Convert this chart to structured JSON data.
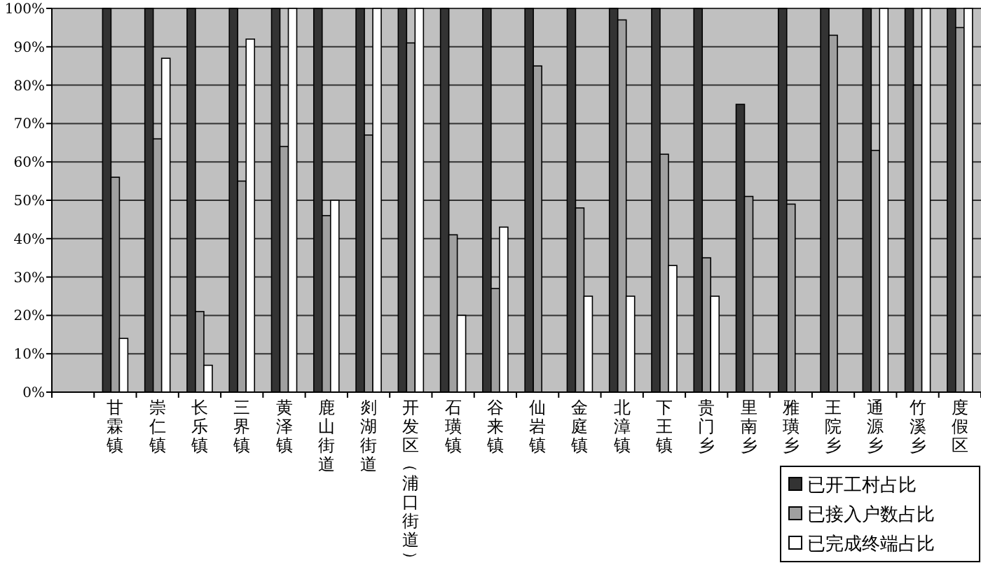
{
  "chart_data": {
    "type": "bar",
    "categories": [
      null,
      "甘霖镇",
      "崇仁镇",
      "长乐镇",
      "三界镇",
      "黄泽镇",
      "鹿山街道",
      "剡湖街道",
      "开发区（浦口街道）",
      "石璜镇",
      "谷来镇",
      "仙岩镇",
      "金庭镇",
      "北漳镇",
      "下王镇",
      "贵门乡",
      "里南乡",
      "雅璜乡",
      "王院乡",
      "通源乡",
      "竹溪乡",
      "度假区"
    ],
    "series": [
      {
        "name": "已开工村占比",
        "color": "#333333",
        "values": [
          null,
          100,
          100,
          100,
          100,
          100,
          100,
          100,
          100,
          100,
          100,
          100,
          100,
          100,
          100,
          100,
          75,
          100,
          100,
          100,
          100,
          100
        ]
      },
      {
        "name": "已接入户数占比",
        "color": "#a0a0a0",
        "values": [
          null,
          56,
          66,
          21,
          55,
          64,
          46,
          67,
          91,
          41,
          27,
          85,
          48,
          97,
          62,
          35,
          51,
          49,
          93,
          63,
          80,
          95
        ]
      },
      {
        "name": "已完成终端占比",
        "color": "#ffffff",
        "values": [
          null,
          14,
          87,
          7,
          92,
          100,
          50,
          100,
          100,
          20,
          43,
          null,
          25,
          25,
          33,
          25,
          null,
          null,
          null,
          100,
          100,
          100
        ]
      }
    ],
    "ylim": [
      0,
      100
    ],
    "yticks": [
      {
        "value": 0,
        "label": "0%"
      },
      {
        "value": 10,
        "label": "10%"
      },
      {
        "value": 20,
        "label": "20%"
      },
      {
        "value": 30,
        "label": "30%"
      },
      {
        "value": 40,
        "label": "40%"
      },
      {
        "value": 50,
        "label": "50%"
      },
      {
        "value": 60,
        "label": "60%"
      },
      {
        "value": 70,
        "label": "70%"
      },
      {
        "value": 80,
        "label": "80%"
      },
      {
        "value": 90,
        "label": "90%"
      },
      {
        "value": 100,
        "label": "100%"
      }
    ],
    "grid": "y",
    "legend": "bottom right"
  }
}
